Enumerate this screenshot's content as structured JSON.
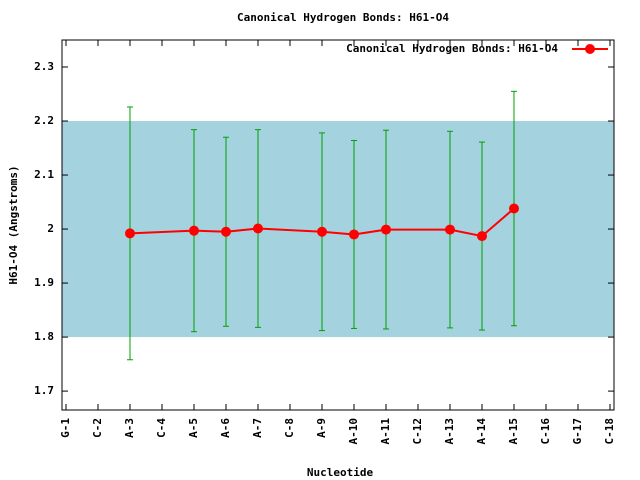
{
  "chart_data": {
    "type": "line",
    "title": "Canonical Hydrogen Bonds: H61-O4",
    "x_label": "Nucleotide",
    "y_label": "H61-O4 (Angstroms)",
    "categories": [
      "G-1",
      "C-2",
      "A-3",
      "C-4",
      "A-5",
      "A-6",
      "A-7",
      "C-8",
      "A-9",
      "A-10",
      "A-11",
      "C-12",
      "A-13",
      "A-14",
      "A-15",
      "C-16",
      "G-17",
      "C-18"
    ],
    "series": [
      {
        "name": "Canonical Hydrogen Bonds: H61-O4",
        "color": "#ff0000",
        "error_color": "#00a000",
        "x": [
          "A-3",
          "A-5",
          "A-6",
          "A-7",
          "A-9",
          "A-10",
          "A-11",
          "A-13",
          "A-14",
          "A-15"
        ],
        "values": [
          1.992,
          1.997,
          1.995,
          2.001,
          1.995,
          1.99,
          1.999,
          1.999,
          1.987,
          2.038
        ],
        "errors": [
          0.234,
          0.187,
          0.175,
          0.183,
          0.183,
          0.174,
          0.184,
          0.182,
          0.174,
          0.217
        ]
      }
    ],
    "band": [
      1.8,
      2.2
    ],
    "band_color": "#a5d2df",
    "ylim": [
      1.665,
      2.35
    ],
    "yticks": [
      1.7,
      1.8,
      1.9,
      2,
      2.1,
      2.2,
      2.3
    ],
    "legend": "top-right",
    "grid": false
  }
}
